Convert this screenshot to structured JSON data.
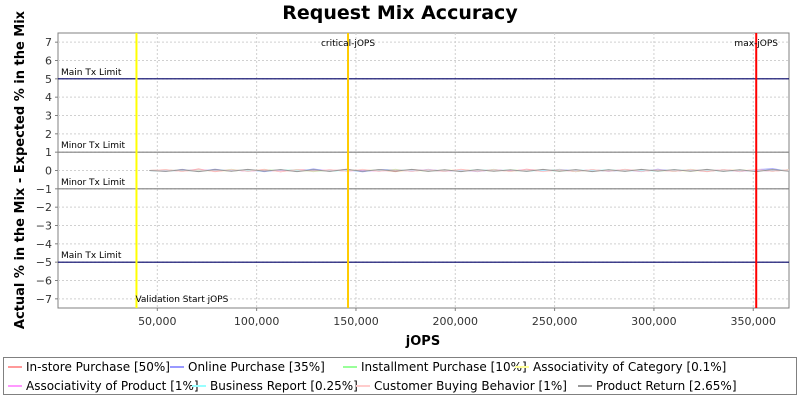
{
  "chart_data": {
    "type": "line",
    "title": "Request Mix Accuracy",
    "xlabel": "jOPS",
    "ylabel": "Actual % in the Mix - Expected % in the Mix",
    "xlim": [
      0,
      368000
    ],
    "ylim": [
      -7.5,
      7.5
    ],
    "x_ticks": [
      50000,
      100000,
      150000,
      200000,
      250000,
      300000,
      350000
    ],
    "x_tick_labels": [
      "50,000",
      "100,000",
      "150,000",
      "200,000",
      "250,000",
      "300,000",
      "350,000"
    ],
    "y_ticks": [
      -7,
      -6,
      -5,
      -4,
      -3,
      -2,
      -1,
      0,
      1,
      2,
      3,
      4,
      5,
      6,
      7
    ],
    "y_tick_labels": [
      "−7",
      "−6",
      "−5",
      "−4",
      "−3",
      "−2",
      "−1",
      "0",
      "1",
      "2",
      "3",
      "4",
      "5",
      "6",
      "7"
    ],
    "grid": true,
    "x_range": [
      46000,
      368000
    ],
    "series": [
      {
        "name": "In-store Purchase [50%]",
        "color": "#ff9999",
        "values": [
          0.0,
          0.05,
          -0.05,
          0.08,
          -0.06,
          0.04,
          -0.03,
          0.06,
          -0.07,
          0.05,
          0.02,
          -0.04,
          0.07,
          -0.05,
          0.03,
          -0.06,
          0.05,
          0.0,
          -0.04,
          0.06,
          -0.03,
          0.04,
          -0.05,
          0.07,
          -0.02,
          0.03,
          -0.06,
          0.05,
          -0.04,
          0.06,
          -0.03,
          0.02,
          -0.05,
          0.04,
          -0.06,
          0.05,
          -0.02,
          0.03,
          -0.04,
          0.05
        ]
      },
      {
        "name": "Online Purchase [35%]",
        "color": "#9999ff",
        "values": [
          0.0,
          -0.04,
          0.06,
          -0.05,
          0.07,
          -0.03,
          0.05,
          -0.06,
          0.04,
          -0.05,
          0.08,
          -0.03,
          0.04,
          -0.07,
          0.05,
          0.03,
          -0.05,
          0.06,
          -0.04,
          0.03,
          -0.06,
          0.05,
          -0.03,
          0.04,
          -0.05,
          0.06,
          -0.03,
          0.04,
          -0.05,
          0.03,
          -0.06,
          0.07,
          -0.04,
          0.05,
          -0.03,
          0.04,
          -0.06,
          0.05,
          0.09,
          -0.03
        ]
      },
      {
        "name": "Installment Purchase [10%]",
        "color": "#99ff99",
        "values": [
          0.0,
          0.03,
          -0.04,
          0.05,
          -0.03,
          0.06,
          -0.05,
          0.04,
          -0.02,
          0.05,
          -0.06,
          0.04,
          -0.03,
          0.05,
          -0.04,
          0.06,
          -0.03,
          0.04,
          -0.05,
          0.03,
          -0.04,
          0.06,
          -0.05,
          0.03,
          -0.04,
          0.05,
          -0.06,
          0.04,
          -0.03,
          0.05,
          -0.04,
          0.03,
          -0.05,
          0.06,
          -0.03,
          0.04,
          -0.05,
          0.03,
          -0.04,
          0.05
        ]
      },
      {
        "name": "Associativity of Category [0.1%]",
        "color": "#ffff99",
        "values": [
          0.0,
          -0.02,
          0.03,
          -0.03,
          0.02,
          -0.03,
          0.04,
          -0.02,
          0.03,
          -0.04,
          0.02,
          -0.03,
          0.03,
          -0.02,
          0.04,
          -0.03,
          0.02,
          -0.04,
          0.03,
          -0.02,
          0.03,
          -0.03,
          0.04,
          -0.02,
          0.03,
          -0.04,
          0.02,
          -0.03,
          0.03,
          -0.02,
          0.04,
          -0.03,
          0.02,
          -0.04,
          0.03,
          -0.02,
          0.03,
          -0.03,
          0.04,
          -0.02
        ]
      },
      {
        "name": "Associativity of Product [1%]",
        "color": "#ff99ff",
        "values": [
          0.0,
          0.02,
          -0.03,
          0.04,
          -0.02,
          0.03,
          -0.04,
          0.02,
          -0.03,
          0.03,
          -0.02,
          0.04,
          -0.03,
          0.02,
          -0.04,
          0.03,
          -0.02,
          0.03,
          -0.04,
          0.02,
          -0.03,
          0.04,
          -0.02,
          0.03,
          -0.03,
          0.02,
          -0.04,
          0.03,
          -0.02,
          0.04,
          -0.03,
          0.02,
          -0.03,
          0.04,
          -0.02,
          0.03,
          -0.04,
          0.02,
          -0.03,
          0.03
        ]
      },
      {
        "name": "Business Report [0.25%]",
        "color": "#99ffff",
        "values": [
          0.0,
          -0.03,
          0.02,
          -0.04,
          0.03,
          -0.02,
          0.03,
          -0.03,
          0.04,
          -0.02,
          0.03,
          -0.04,
          0.02,
          -0.03,
          0.03,
          -0.02,
          0.04,
          -0.03,
          0.02,
          -0.03,
          0.04,
          -0.02,
          0.03,
          -0.04,
          0.02,
          -0.03,
          0.03,
          -0.02,
          0.04,
          -0.03,
          0.02,
          -0.03,
          0.04,
          -0.02,
          0.03,
          -0.04,
          0.02,
          -0.03,
          0.03,
          -0.02
        ]
      },
      {
        "name": "Customer Buying Behavior [1%]",
        "color": "#ffcccc",
        "values": [
          0.0,
          0.04,
          -0.05,
          0.03,
          -0.04,
          0.05,
          -0.03,
          0.04,
          -0.06,
          0.03,
          -0.04,
          0.05,
          -0.03,
          0.06,
          -0.04,
          0.03,
          -0.05,
          0.04,
          -0.03,
          0.05,
          -0.04,
          0.03,
          -0.05,
          0.04,
          -0.06,
          0.03,
          -0.04,
          0.05,
          -0.03,
          0.04,
          -0.05,
          0.03,
          -0.04,
          0.05,
          -0.03,
          0.04,
          -0.05,
          0.06,
          -0.04,
          0.03
        ]
      },
      {
        "name": "Product Return [2.65%]",
        "color": "#999999",
        "values": [
          0.0,
          -0.05,
          0.04,
          -0.06,
          0.05,
          -0.04,
          0.06,
          -0.03,
          0.05,
          -0.06,
          0.04,
          -0.05,
          0.06,
          -0.04,
          0.05,
          -0.03,
          0.06,
          -0.05,
          0.04,
          -0.06,
          0.05,
          -0.04,
          0.03,
          -0.05,
          0.06,
          -0.04,
          0.05,
          -0.06,
          0.04,
          -0.05,
          0.06,
          -0.03,
          0.05,
          -0.04,
          0.06,
          -0.05,
          0.04,
          -0.06,
          0.05,
          -0.04
        ]
      }
    ],
    "horizontal_lines": [
      {
        "label": "Main Tx Limit",
        "y": 5,
        "color": "#000066",
        "label_position": "above"
      },
      {
        "label": "Minor Tx Limit",
        "y": 1,
        "color": "#808080",
        "label_position": "above"
      },
      {
        "label": "Minor Tx Limit",
        "y": -1,
        "color": "#808080",
        "label_position": "above"
      },
      {
        "label": "Main Tx Limit",
        "y": -5,
        "color": "#000066",
        "label_position": "above"
      }
    ],
    "vertical_lines": [
      {
        "label": "Validation Start jOPS",
        "x": 39500,
        "color": "#ffff00",
        "label_position": "bottom"
      },
      {
        "label": "critical-jOPS",
        "x": 146000,
        "color": "#ffcc00",
        "label_position": "top"
      },
      {
        "label": "max-jOPS",
        "x": 351500,
        "color": "#ff0000",
        "label_position": "top"
      }
    ],
    "legend": {
      "placement": "bottom"
    }
  }
}
